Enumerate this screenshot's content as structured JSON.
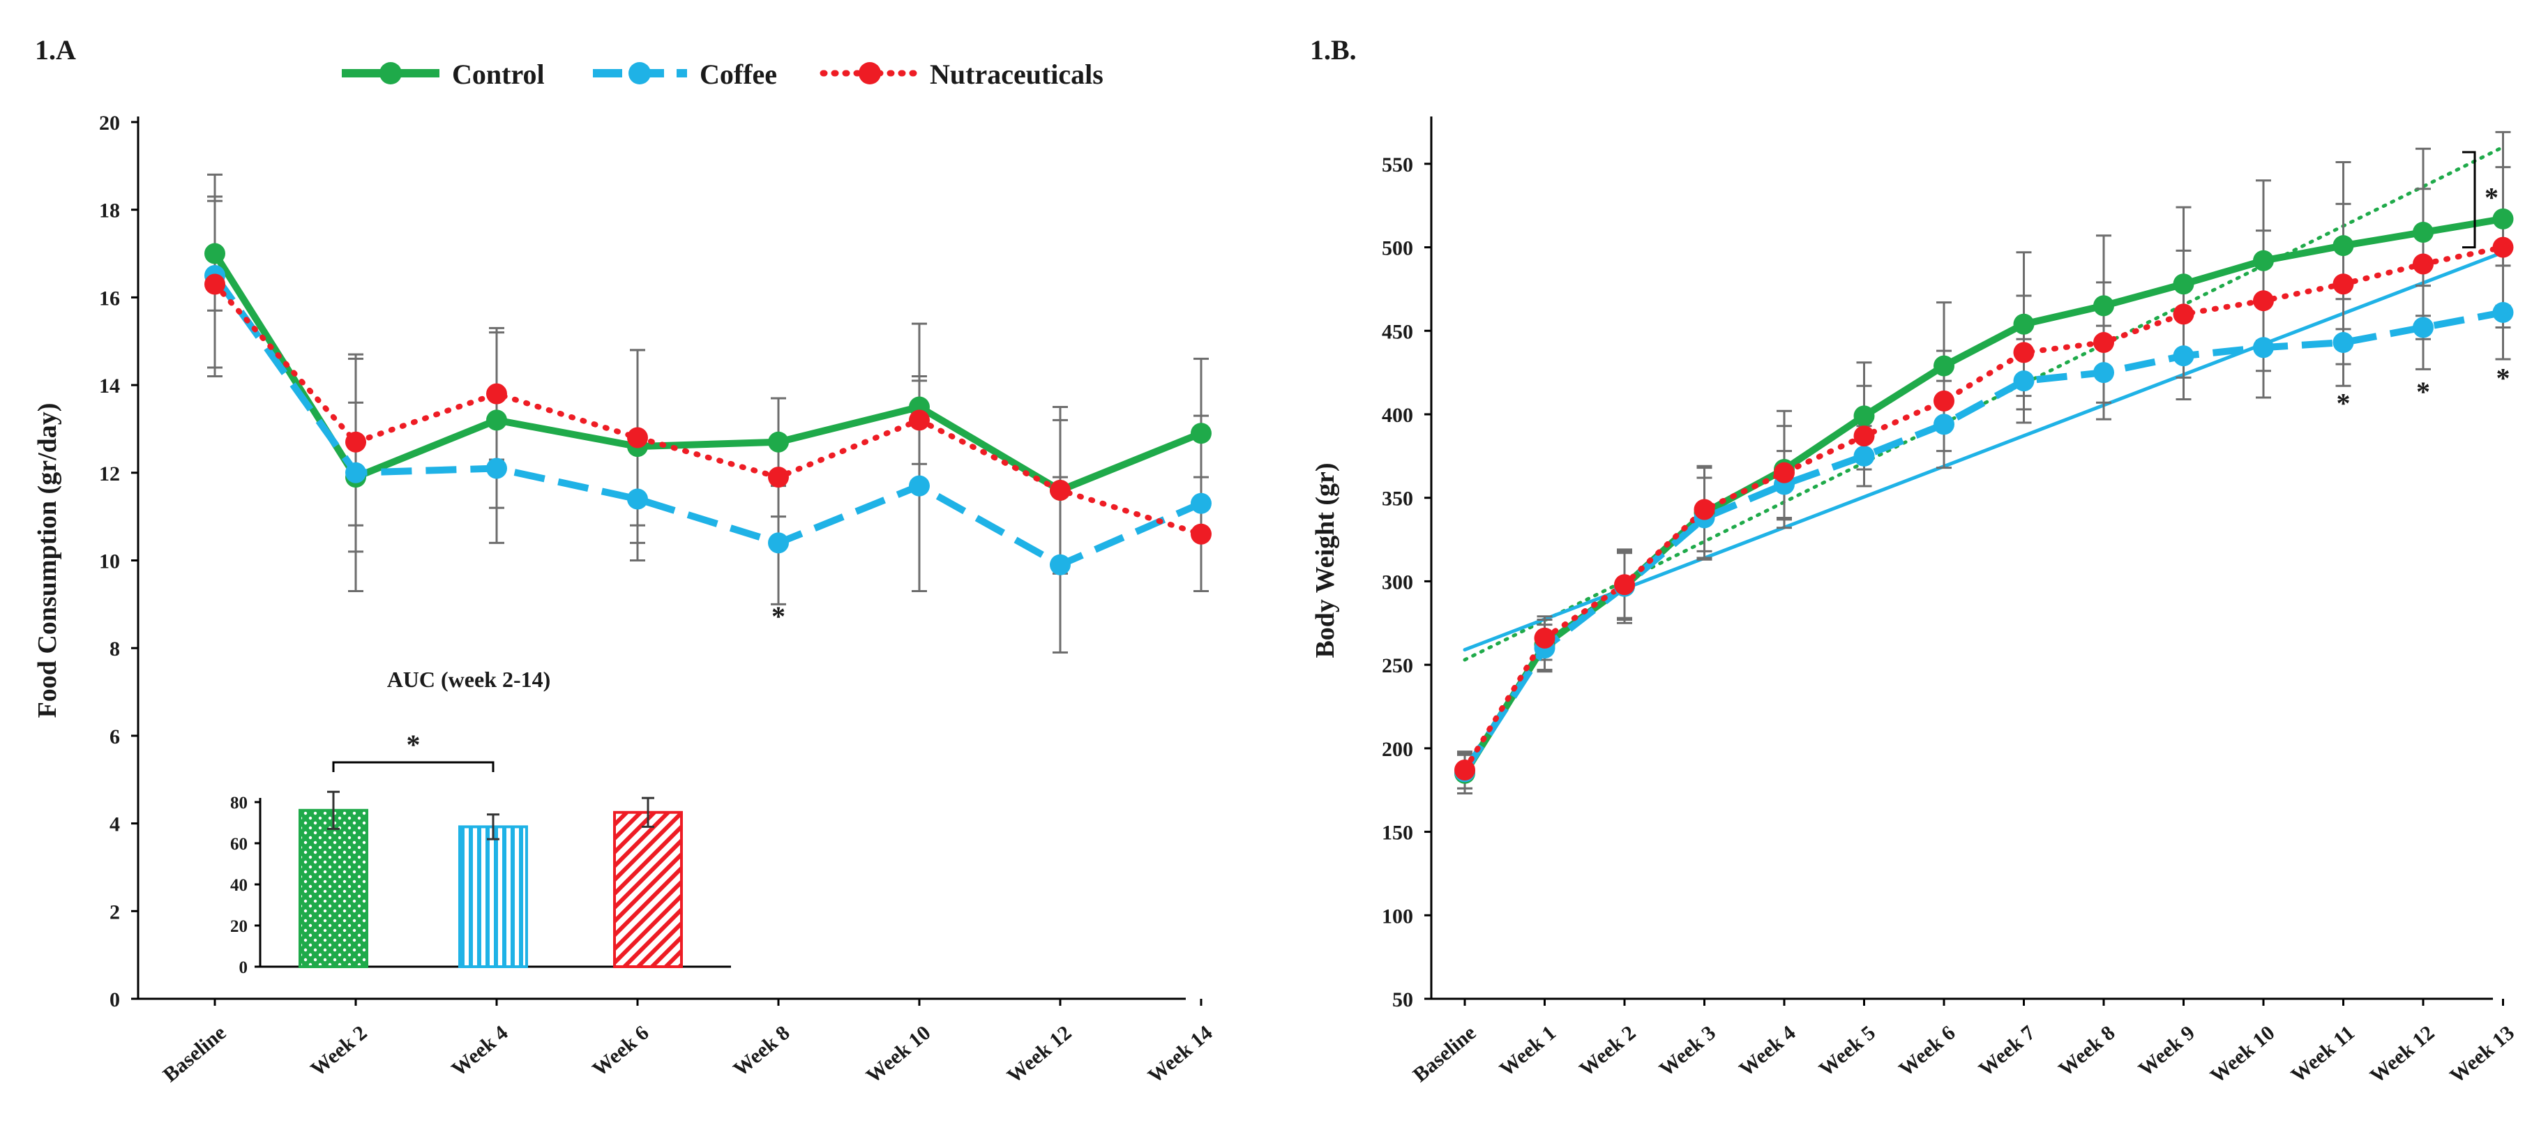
{
  "colors": {
    "control": "#1faa4a",
    "coffee": "#1fb2e6",
    "nutraceuticals": "#ee1c24",
    "axis": "#000000",
    "error": "#6d6d6d"
  },
  "legend": {
    "control": "Control",
    "coffee": "Coffee",
    "nutraceuticals": "Nutraceuticals"
  },
  "chart_data": [
    {
      "id": "panel-a",
      "panel_label": "1.A",
      "type": "line",
      "ylabel": "Food Consumption (gr/day)",
      "xlabel": "",
      "ylim": [
        0,
        20
      ],
      "yticks": [
        0,
        2,
        4,
        6,
        8,
        10,
        12,
        14,
        16,
        18,
        20
      ],
      "categories": [
        "Baseline",
        "Week 2",
        "Week 4",
        "Week 6",
        "Week 8",
        "Week 10",
        "Week 12",
        "Week 14"
      ],
      "series": [
        {
          "name": "Control",
          "key": "control",
          "values": [
            17.0,
            11.9,
            13.2,
            12.6,
            12.7,
            13.5,
            11.6,
            12.9
          ],
          "errors": [
            1.3,
            1.7,
            2.0,
            2.2,
            1.0,
            1.9,
            1.9,
            1.7
          ]
        },
        {
          "name": "Coffee",
          "key": "coffee",
          "values": [
            16.5,
            12.0,
            12.1,
            11.4,
            10.4,
            11.7,
            9.9,
            11.3
          ],
          "errors": [
            2.3,
            2.7,
            1.7,
            1.4,
            1.4,
            2.4,
            2.0,
            2.0
          ]
        },
        {
          "name": "Nutraceuticals",
          "key": "nutraceuticals",
          "values": [
            16.3,
            12.7,
            13.8,
            12.8,
            11.9,
            13.2,
            11.6,
            10.6
          ],
          "errors": [
            1.9,
            1.9,
            1.5,
            2.0,
            0.9,
            1.0,
            1.6,
            1.3
          ]
        }
      ],
      "annotations": [
        {
          "text": "*",
          "category": "Week 8",
          "value": 8.7
        }
      ],
      "inset": {
        "title": "AUC (week 2-14)",
        "type": "bar",
        "ylim": [
          0,
          80
        ],
        "yticks": [
          0,
          20,
          40,
          60,
          80
        ],
        "categories": [
          "Control",
          "Coffee",
          "Nutraceuticals"
        ],
        "values": [
          76,
          68,
          75
        ],
        "errors": [
          9,
          6,
          7
        ],
        "significance": {
          "text": "*",
          "between": [
            "Control",
            "Coffee"
          ]
        }
      }
    },
    {
      "id": "panel-b",
      "panel_label": "1.B.",
      "type": "line",
      "ylabel": "Body Weight (gr)",
      "xlabel": "",
      "ylim": [
        50,
        575
      ],
      "yticks": [
        50,
        100,
        150,
        200,
        250,
        300,
        350,
        400,
        450,
        500,
        550
      ],
      "categories": [
        "Baseline",
        "Week 1",
        "Week 2",
        "Week 3",
        "Week 4",
        "Week 5",
        "Week 6",
        "Week 7",
        "Week 8",
        "Week 9",
        "Week 10",
        "Week 11",
        "Week 12",
        "Week 13"
      ],
      "series": [
        {
          "name": "Control",
          "key": "control",
          "values": [
            185,
            262,
            297,
            341,
            367,
            399,
            429,
            454,
            465,
            478,
            492,
            501,
            509,
            517
          ],
          "errors": [
            12,
            15,
            22,
            28,
            35,
            32,
            38,
            43,
            42,
            46,
            48,
            50,
            50,
            52
          ]
        },
        {
          "name": "Coffee",
          "key": "coffee",
          "values": [
            186,
            260,
            297,
            338,
            358,
            375,
            394,
            420,
            425,
            435,
            440,
            443,
            452,
            461
          ],
          "errors": [
            10,
            14,
            20,
            24,
            20,
            18,
            26,
            25,
            28,
            26,
            30,
            26,
            25,
            28
          ]
        },
        {
          "name": "Nutraceuticals",
          "key": "nutraceuticals",
          "values": [
            187,
            266,
            298,
            343,
            365,
            387,
            408,
            437,
            443,
            460,
            468,
            478,
            490,
            500
          ],
          "errors": [
            11,
            13,
            20,
            25,
            28,
            30,
            30,
            34,
            36,
            38,
            42,
            48,
            45,
            48
          ]
        }
      ],
      "trendlines": [
        {
          "key": "control",
          "style": "dotted",
          "from": 253,
          "to": 560
        },
        {
          "key": "coffee",
          "style": "solid",
          "from": 259,
          "to": 497
        }
      ],
      "annotations": [
        {
          "text": "*",
          "category": "Week 11",
          "value": 406
        },
        {
          "text": "*",
          "category": "Week 12",
          "value": 413
        },
        {
          "text": "*",
          "category": "Week 13",
          "value": 421
        }
      ],
      "bracket": {
        "text": "*",
        "from": 500,
        "to": 557
      }
    }
  ]
}
